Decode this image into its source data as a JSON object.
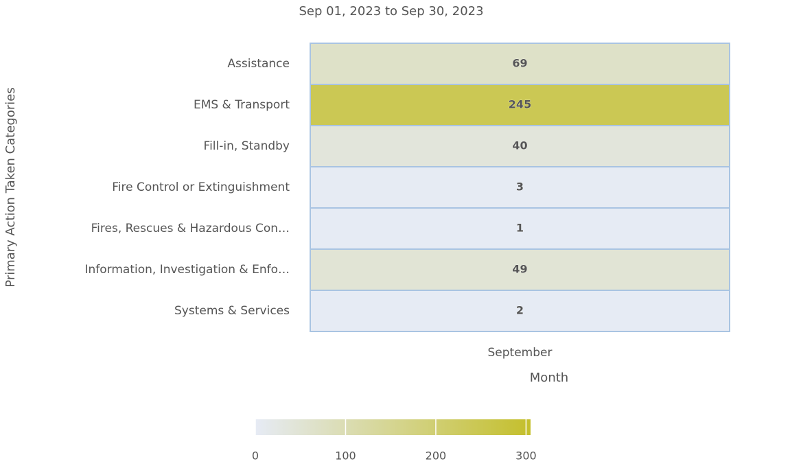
{
  "chart_data": {
    "type": "heatmap",
    "title": "Sep 01, 2023 to Sep 30, 2023",
    "y_label": "Primary Action Taken Categories",
    "x_label": "Month",
    "x_categories": [
      "September"
    ],
    "categories": [
      "Assistance",
      "EMS & Transport",
      "Fill-in, Standby",
      "Fire Control or Extinguishment",
      "Fires, Rescues & Hazardous Con…",
      "Information, Investigation & Enfo…",
      "Systems & Services"
    ],
    "values": [
      69,
      245,
      40,
      3,
      1,
      49,
      2
    ],
    "colorlim": [
      0,
      305
    ],
    "colorticks": [
      0,
      100,
      200,
      300
    ],
    "colors": [
      "#e6ebf5",
      "#c4bf2c"
    ],
    "cell_border": "#a9c4e2"
  }
}
